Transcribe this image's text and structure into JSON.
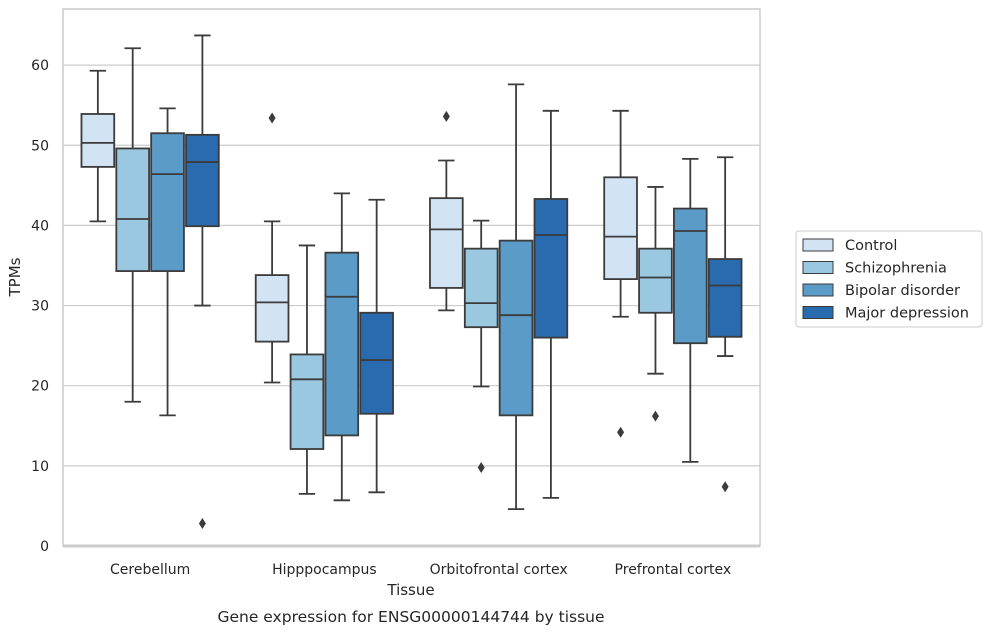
{
  "caption": "Gene expression for ENSG00000144744 by tissue",
  "chart_data": {
    "type": "box",
    "xlabel": "Tissue",
    "ylabel": "TPMs",
    "ylim": [
      0,
      67
    ],
    "yticks": [
      0,
      10,
      20,
      30,
      40,
      50,
      60
    ],
    "grid": "horizontal",
    "legend_position": "right",
    "categories": [
      "Cerebellum",
      "Hipppocampus",
      "Orbitofrontal cortex",
      "Prefrontal cortex"
    ],
    "series": [
      {
        "name": "Control",
        "color": "#d2e3f3",
        "boxes": [
          {
            "whislo": 40.5,
            "q1": 47.3,
            "med": 50.3,
            "q3": 53.9,
            "whishi": 59.3,
            "fliers": []
          },
          {
            "whislo": 20.4,
            "q1": 25.5,
            "med": 30.4,
            "q3": 33.8,
            "whishi": 40.5,
            "fliers": [
              53.4
            ]
          },
          {
            "whislo": 29.4,
            "q1": 32.2,
            "med": 39.5,
            "q3": 43.4,
            "whishi": 48.1,
            "fliers": [
              53.6
            ]
          },
          {
            "whislo": 28.6,
            "q1": 33.3,
            "med": 38.6,
            "q3": 46.0,
            "whishi": 54.3,
            "fliers": [
              14.2
            ]
          }
        ]
      },
      {
        "name": "Schizophrenia",
        "color": "#9ac8e0",
        "boxes": [
          {
            "whislo": 18.0,
            "q1": 34.3,
            "med": 40.8,
            "q3": 49.6,
            "whishi": 62.1,
            "fliers": []
          },
          {
            "whislo": 6.5,
            "q1": 12.1,
            "med": 20.8,
            "q3": 23.9,
            "whishi": 37.5,
            "fliers": []
          },
          {
            "whislo": 19.9,
            "q1": 27.3,
            "med": 30.3,
            "q3": 37.1,
            "whishi": 40.6,
            "fliers": [
              9.8
            ]
          },
          {
            "whislo": 21.5,
            "q1": 29.1,
            "med": 33.5,
            "q3": 37.1,
            "whishi": 44.8,
            "fliers": [
              16.2
            ]
          }
        ]
      },
      {
        "name": "Bipolar disorder",
        "color": "#5b9bc8",
        "boxes": [
          {
            "whislo": 16.3,
            "q1": 34.3,
            "med": 46.4,
            "q3": 51.5,
            "whishi": 54.6,
            "fliers": []
          },
          {
            "whislo": 5.7,
            "q1": 13.8,
            "med": 31.1,
            "q3": 36.6,
            "whishi": 44.0,
            "fliers": []
          },
          {
            "whislo": 4.6,
            "q1": 16.3,
            "med": 28.8,
            "q3": 38.1,
            "whishi": 57.6,
            "fliers": []
          },
          {
            "whislo": 10.5,
            "q1": 25.3,
            "med": 39.3,
            "q3": 42.1,
            "whishi": 48.3,
            "fliers": []
          }
        ]
      },
      {
        "name": "Major depression",
        "color": "#2a6aae",
        "boxes": [
          {
            "whislo": 30.0,
            "q1": 39.9,
            "med": 47.9,
            "q3": 51.3,
            "whishi": 63.7,
            "fliers": [
              2.8
            ]
          },
          {
            "whislo": 6.7,
            "q1": 16.5,
            "med": 23.2,
            "q3": 29.1,
            "whishi": 43.2,
            "fliers": []
          },
          {
            "whislo": 6.0,
            "q1": 26.0,
            "med": 38.8,
            "q3": 43.3,
            "whishi": 54.3,
            "fliers": []
          },
          {
            "whislo": 23.7,
            "q1": 26.1,
            "med": 32.5,
            "q3": 35.8,
            "whishi": 48.5,
            "fliers": [
              7.4
            ]
          }
        ]
      }
    ]
  }
}
